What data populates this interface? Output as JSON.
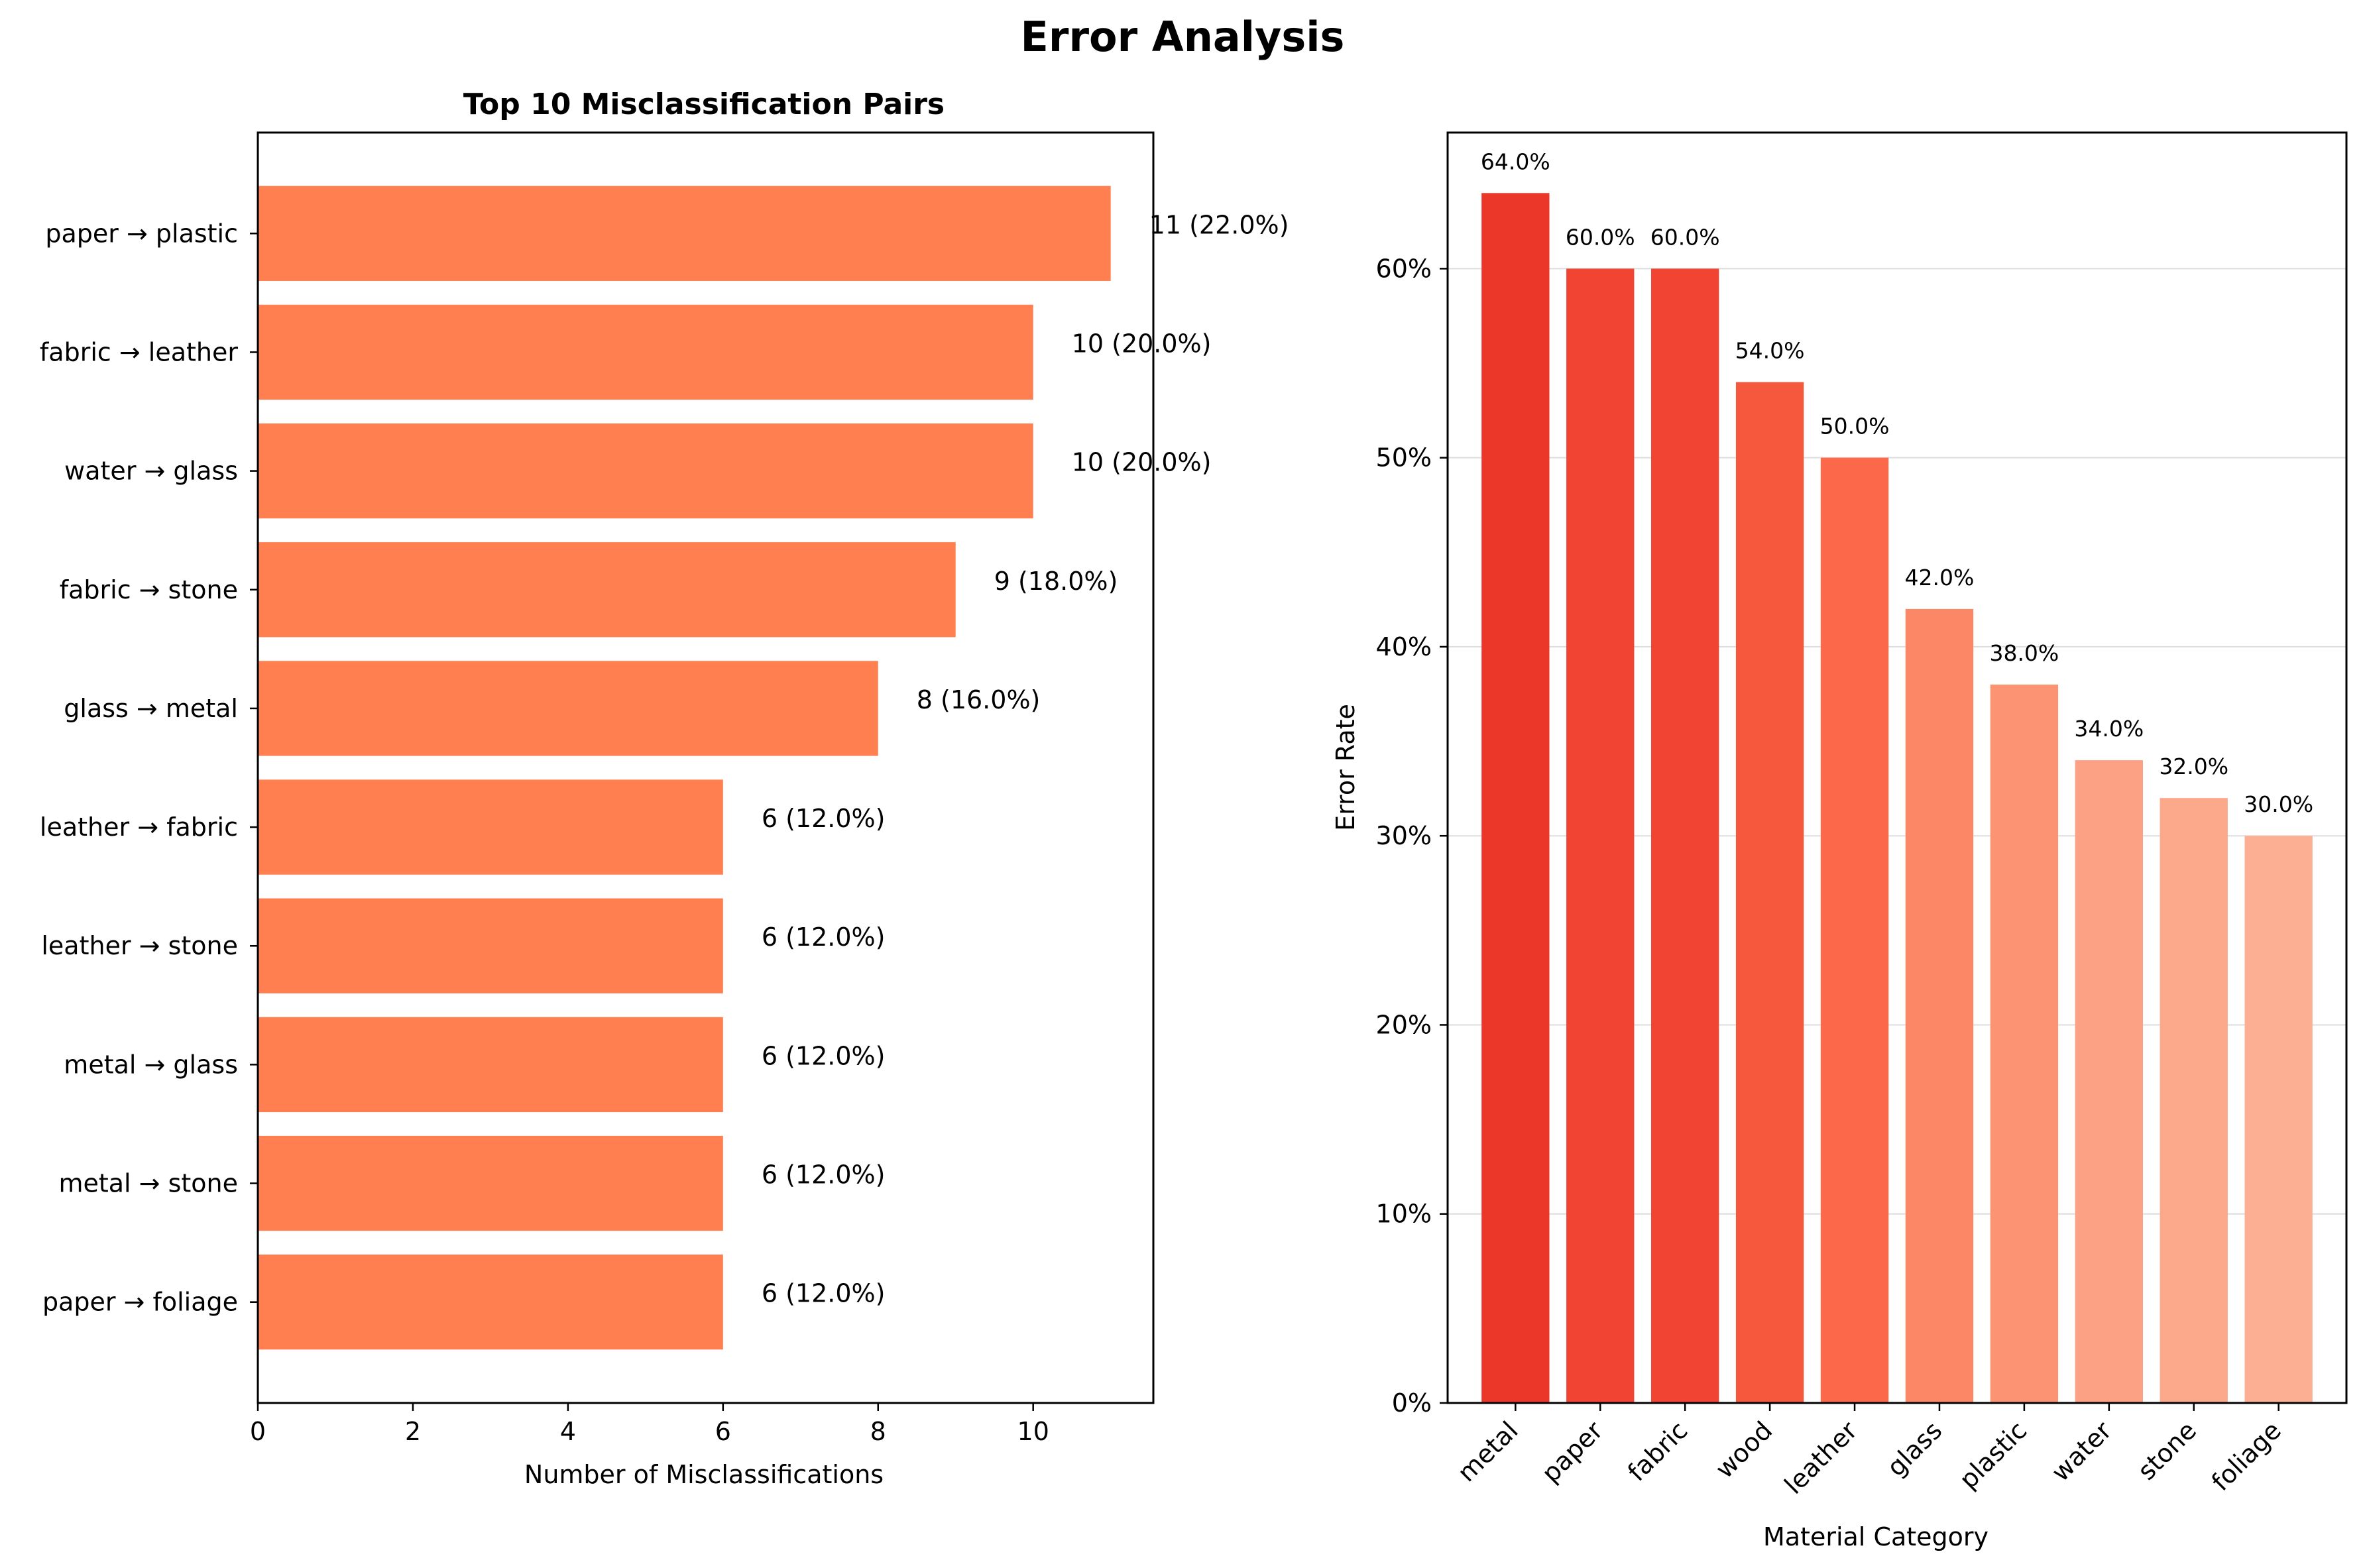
{
  "title": "Error Analysis",
  "chart_data": [
    {
      "type": "bar",
      "orientation": "horizontal",
      "title": "Top 10 Misclassification Pairs",
      "xlabel": "Number of Misclassifications",
      "ylabel": "",
      "xlim": [
        0,
        11.55
      ],
      "xticks": [
        0,
        2,
        4,
        6,
        8,
        10
      ],
      "color": "#ff7f50",
      "categories": [
        "paper → plastic",
        "fabric → leather",
        "water → glass",
        "fabric → stone",
        "glass → metal",
        "leather → fabric",
        "leather → stone",
        "metal → glass",
        "metal → stone",
        "paper → foliage"
      ],
      "values": [
        11,
        10,
        10,
        9,
        8,
        6,
        6,
        6,
        6,
        6
      ],
      "data_labels": [
        "11 (22.0%)",
        "10 (20.0%)",
        "10 (20.0%)",
        "9 (18.0%)",
        "8 (16.0%)",
        "6 (12.0%)",
        "6 (12.0%)",
        "6 (12.0%)",
        "6 (12.0%)",
        "6 (12.0%)"
      ],
      "grid": false
    },
    {
      "type": "bar",
      "orientation": "vertical",
      "title": "",
      "xlabel": "Material Category",
      "ylabel": "Error Rate",
      "ylim": [
        0,
        67.2
      ],
      "yticks": [
        0,
        10,
        20,
        30,
        40,
        50,
        60
      ],
      "ytick_labels": [
        "0%",
        "10%",
        "20%",
        "30%",
        "40%",
        "50%",
        "60%"
      ],
      "categories": [
        "metal",
        "paper",
        "fabric",
        "wood",
        "leather",
        "glass",
        "plastic",
        "water",
        "stone",
        "foliage"
      ],
      "values": [
        64.0,
        60.0,
        60.0,
        54.0,
        50.0,
        42.0,
        38.0,
        34.0,
        32.0,
        30.0
      ],
      "data_labels": [
        "64.0%",
        "60.0%",
        "60.0%",
        "54.0%",
        "50.0%",
        "42.0%",
        "38.0%",
        "34.0%",
        "32.0%",
        "30.0%"
      ],
      "colors": [
        "#eb372a",
        "#f14432",
        "#f14432",
        "#f6583e",
        "#fb694a",
        "#fc8767",
        "#fc9474",
        "#fca183",
        "#fca88b",
        "#fcaf93"
      ],
      "grid": true,
      "grid_axis": "y"
    }
  ]
}
